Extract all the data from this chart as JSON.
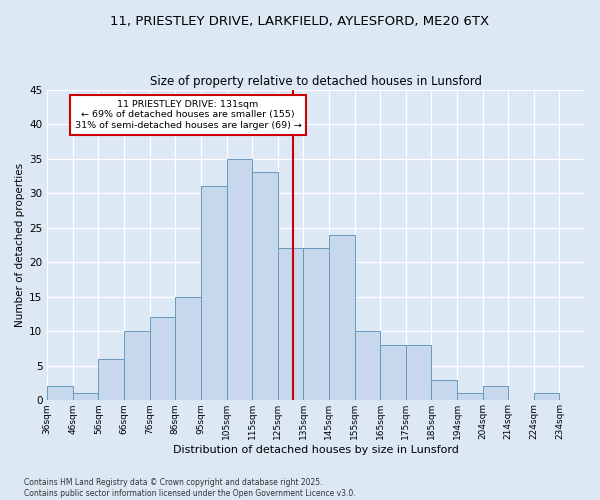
{
  "title1": "11, PRIESTLEY DRIVE, LARKFIELD, AYLESFORD, ME20 6TX",
  "title2": "Size of property relative to detached houses in Lunsford",
  "xlabel": "Distribution of detached houses by size in Lunsford",
  "ylabel": "Number of detached properties",
  "footnote1": "Contains HM Land Registry data © Crown copyright and database right 2025.",
  "footnote2": "Contains public sector information licensed under the Open Government Licence v3.0.",
  "bin_labels": [
    "36sqm",
    "46sqm",
    "56sqm",
    "66sqm",
    "76sqm",
    "86sqm",
    "95sqm",
    "105sqm",
    "115sqm",
    "125sqm",
    "135sqm",
    "145sqm",
    "155sqm",
    "165sqm",
    "175sqm",
    "185sqm",
    "194sqm",
    "204sqm",
    "214sqm",
    "224sqm",
    "234sqm"
  ],
  "values": [
    2,
    1,
    6,
    10,
    12,
    15,
    31,
    35,
    33,
    22,
    22,
    24,
    10,
    8,
    8,
    3,
    1,
    2,
    0,
    1,
    0
  ],
  "bar_color": "#c8d8ec",
  "bar_edge_color": "#6699bb",
  "vline_x_index": 9.6,
  "vline_color": "#cc0000",
  "annotation_title": "11 PRIESTLEY DRIVE: 131sqm",
  "annotation_line1": "← 69% of detached houses are smaller (155)",
  "annotation_line2": "31% of semi-detached houses are larger (69) →",
  "annotation_box_color": "#ffffff",
  "annotation_box_edge": "#cc0000",
  "background_color": "#dde8f5",
  "ylim": [
    0,
    45
  ],
  "yticks": [
    0,
    5,
    10,
    15,
    20,
    25,
    30,
    35,
    40,
    45
  ],
  "n_bins": 21
}
